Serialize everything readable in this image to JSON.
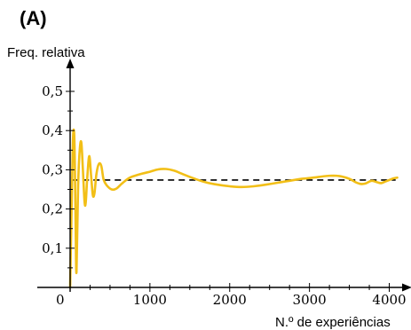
{
  "chart_data": {
    "type": "line",
    "panel_label": "(A)",
    "title": "",
    "xlabel": "N.º de experiências",
    "ylabel": "Freq. relativa",
    "xlim": [
      0,
      4150
    ],
    "ylim": [
      0,
      0.57
    ],
    "x_ticks": [
      1000,
      2000,
      3000,
      4000
    ],
    "x_tick_labels": [
      "1000",
      "2000",
      "3000",
      "4000"
    ],
    "y_ticks": [
      0.1,
      0.2,
      0.3,
      0.4,
      0.5
    ],
    "y_tick_labels": [
      "0,1",
      "0,2",
      "0,3",
      "0,4",
      "0,5"
    ],
    "origin_label": "0",
    "reference_line": {
      "y": 0.274,
      "style": "dashed"
    },
    "grid": false,
    "colors": {
      "series": "#f2bf17",
      "reference": "#000000",
      "axes": "#000000"
    },
    "series": [
      {
        "points": [
          [
            0,
            0.0
          ],
          [
            15,
            0.16
          ],
          [
            35,
            0.37
          ],
          [
            50,
            0.395
          ],
          [
            60,
            0.3
          ],
          [
            70,
            0.14
          ],
          [
            80,
            0.04
          ],
          [
            100,
            0.26
          ],
          [
            120,
            0.35
          ],
          [
            140,
            0.37
          ],
          [
            160,
            0.3
          ],
          [
            180,
            0.22
          ],
          [
            195,
            0.215
          ],
          [
            215,
            0.28
          ],
          [
            240,
            0.335
          ],
          [
            265,
            0.28
          ],
          [
            285,
            0.235
          ],
          [
            305,
            0.24
          ],
          [
            330,
            0.29
          ],
          [
            360,
            0.315
          ],
          [
            390,
            0.31
          ],
          [
            420,
            0.275
          ],
          [
            460,
            0.26
          ],
          [
            520,
            0.25
          ],
          [
            580,
            0.252
          ],
          [
            650,
            0.265
          ],
          [
            750,
            0.28
          ],
          [
            900,
            0.29
          ],
          [
            1000,
            0.295
          ],
          [
            1100,
            0.301
          ],
          [
            1200,
            0.302
          ],
          [
            1300,
            0.298
          ],
          [
            1400,
            0.29
          ],
          [
            1550,
            0.278
          ],
          [
            1700,
            0.268
          ],
          [
            1850,
            0.262
          ],
          [
            2000,
            0.258
          ],
          [
            2150,
            0.256
          ],
          [
            2300,
            0.258
          ],
          [
            2450,
            0.262
          ],
          [
            2600,
            0.267
          ],
          [
            2750,
            0.272
          ],
          [
            2900,
            0.277
          ],
          [
            3050,
            0.28
          ],
          [
            3200,
            0.284
          ],
          [
            3300,
            0.285
          ],
          [
            3400,
            0.283
          ],
          [
            3500,
            0.277
          ],
          [
            3580,
            0.268
          ],
          [
            3640,
            0.264
          ],
          [
            3700,
            0.265
          ],
          [
            3780,
            0.272
          ],
          [
            3850,
            0.268
          ],
          [
            3900,
            0.266
          ],
          [
            3950,
            0.27
          ],
          [
            4000,
            0.274
          ],
          [
            4050,
            0.278
          ],
          [
            4100,
            0.28
          ]
        ]
      }
    ]
  }
}
